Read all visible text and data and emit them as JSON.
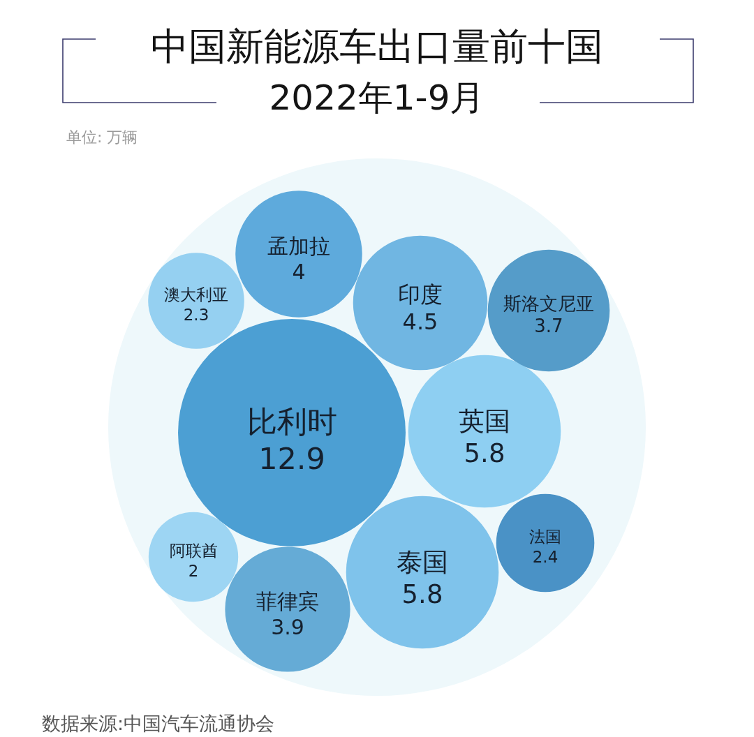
{
  "chart_data": {
    "type": "other",
    "title": "中国新能源车出口量前十国",
    "subtitle": "2022年1-9月",
    "categories": [
      "比利时",
      "英国",
      "泰国",
      "印度",
      "孟加拉",
      "菲律宾",
      "斯洛文尼亚",
      "法国",
      "澳大利亚",
      "阿联酋"
    ],
    "values": [
      12.9,
      5.8,
      5.8,
      4.5,
      4,
      3.9,
      3.7,
      2.4,
      2.3,
      2
    ],
    "colors": [
      "#4c9fd3",
      "#8ecff2",
      "#7fc3eb",
      "#70b6e2",
      "#5eaadc",
      "#65abd6",
      "#559cc9",
      "#4a92c6",
      "#95d0f1",
      "#9dd5f3"
    ],
    "data_labels": true,
    "annotations": [
      "单位: 万辆",
      "数据来源:中国汽车流通协会"
    ]
  }
}
